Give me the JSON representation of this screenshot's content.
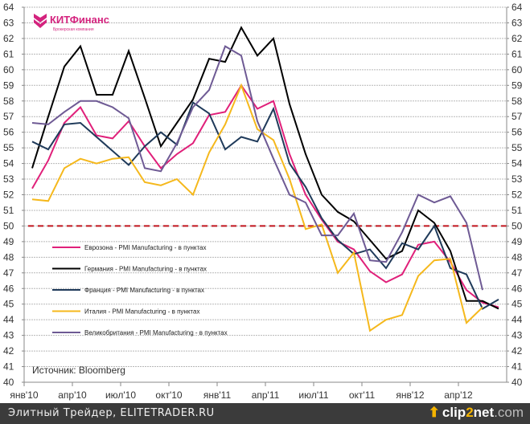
{
  "chart_data": {
    "type": "line",
    "x": [
      "Jan'10",
      "Feb'10",
      "Mar'10",
      "Apr'10",
      "May'10",
      "Jun'10",
      "Jul'10",
      "Aug'10",
      "Sep'10",
      "Oct'10",
      "Nov'10",
      "Dec'10",
      "Jan'11",
      "Feb'11",
      "Mar'11",
      "Apr'11",
      "May'11",
      "Jun'11",
      "Jul'11",
      "Aug'11",
      "Sep'11",
      "Oct'11",
      "Nov'11",
      "Dec'11",
      "Jan'12",
      "Feb'12",
      "Mar'12",
      "Apr'12",
      "May'12",
      "Jun'12"
    ],
    "xtick_labels": [
      "янв'10",
      "апр'10",
      "июл'10",
      "окт'10",
      "янв'11",
      "апр'11",
      "июл'11",
      "окт'11",
      "янв'12",
      "апр'12"
    ],
    "ylim": [
      40,
      64
    ],
    "yticks": [
      40,
      41,
      42,
      43,
      44,
      45,
      46,
      47,
      48,
      49,
      50,
      51,
      52,
      53,
      54,
      55,
      56,
      57,
      58,
      59,
      60,
      61,
      62,
      63,
      64
    ],
    "grid": true,
    "reference_line": {
      "value": 50,
      "color": "#c0141c",
      "style": "dashed"
    },
    "legend_position": "lower-left",
    "series": [
      {
        "name": "Еврозона - PMI Manufacturing - в пунктах",
        "color": "#e0207a",
        "values": [
          52.4,
          54.2,
          56.6,
          57.6,
          55.8,
          55.6,
          56.7,
          55.1,
          53.7,
          54.6,
          55.3,
          57.1,
          57.3,
          59.0,
          57.5,
          58.0,
          54.6,
          52.0,
          50.4,
          49.0,
          48.5,
          47.1,
          46.4,
          46.9,
          48.8,
          49.0,
          47.7,
          45.9,
          45.1,
          44.8
        ]
      },
      {
        "name": "Германия - PMI Manufacturing - в пунктах",
        "color": "#000000",
        "values": [
          53.7,
          57.0,
          60.2,
          61.5,
          58.4,
          58.4,
          61.2,
          58.2,
          55.1,
          56.6,
          58.1,
          60.7,
          60.5,
          62.7,
          60.9,
          62.0,
          57.8,
          54.6,
          52.0,
          50.9,
          50.3,
          49.1,
          47.9,
          48.4,
          51.0,
          50.2,
          48.4,
          45.2,
          45.2,
          44.7
        ]
      },
      {
        "name": "Франция - PMI Manufacturing - в пунктах",
        "color": "#1f3a5a",
        "values": [
          55.4,
          54.9,
          56.5,
          56.6,
          55.7,
          54.8,
          53.9,
          55.1,
          56.0,
          55.2,
          57.9,
          57.2,
          54.9,
          55.7,
          55.4,
          57.5,
          54.0,
          52.5,
          50.5,
          49.1,
          48.2,
          48.5,
          47.3,
          48.9,
          48.5,
          50.0,
          47.3,
          46.9,
          44.7,
          45.3
        ]
      },
      {
        "name": "Италия - PMI Manufacturing - в пунктах",
        "color": "#f5b81c",
        "values": [
          51.7,
          51.6,
          53.7,
          54.3,
          54.0,
          54.3,
          54.4,
          52.8,
          52.6,
          53.0,
          52.0,
          54.7,
          56.5,
          59.0,
          56.2,
          55.5,
          53.0,
          49.8,
          50.1,
          47.0,
          48.3,
          43.3,
          44.0,
          44.3,
          46.8,
          47.8,
          47.9,
          43.8,
          44.8,
          null
        ]
      },
      {
        "name": "Великобритания - PMI Manufacturing - в пунктах",
        "color": "#6e5a94",
        "values": [
          56.6,
          56.5,
          57.3,
          58.0,
          58.0,
          57.6,
          56.9,
          53.7,
          53.5,
          55.3,
          57.6,
          58.7,
          61.5,
          60.9,
          56.7,
          54.3,
          52.0,
          51.5,
          49.4,
          49.4,
          50.8,
          47.8,
          47.7,
          49.6,
          52.0,
          51.5,
          51.9,
          50.2,
          45.9,
          null
        ]
      }
    ],
    "annotations": [
      "Источник: Bloomberg"
    ]
  },
  "logo": {
    "name": "КИТФинанс",
    "subtitle": "Брокерская компания",
    "color": "#d4237e"
  },
  "footer": {
    "text": "Элитный Трейдер, ELITETRADER.RU",
    "watermark_a": "clip",
    "watermark_b": "2",
    "watermark_c": "net",
    "watermark_d": ".com"
  }
}
